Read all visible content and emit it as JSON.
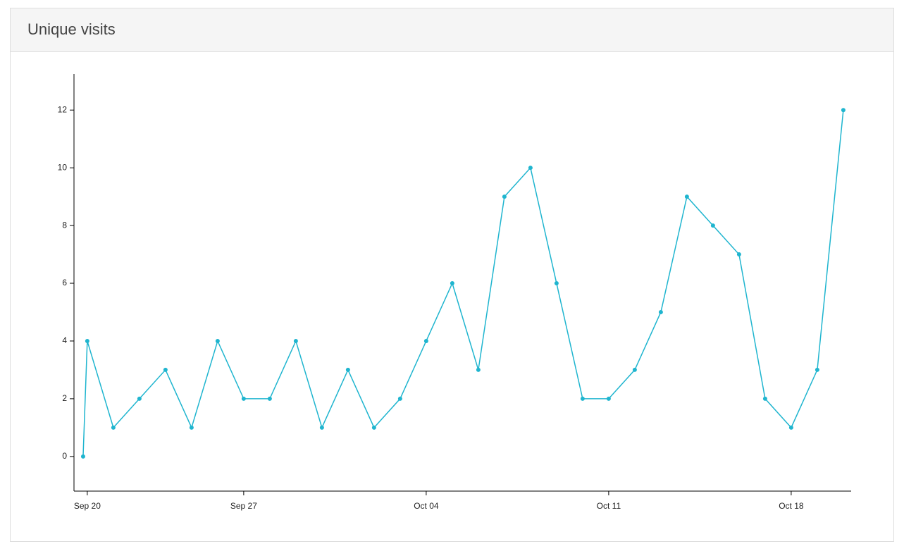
{
  "panel": {
    "title": "Unique visits"
  },
  "chart_data": {
    "type": "line",
    "x": [
      -0.16,
      0,
      1,
      2,
      3,
      4,
      5,
      6,
      7,
      8,
      9,
      10,
      11,
      12,
      13,
      14,
      15,
      16,
      17,
      18,
      19,
      20,
      21,
      22,
      23,
      24,
      25,
      26,
      27,
      28,
      29
    ],
    "series": [
      {
        "color": "#1fb5cf",
        "values": [
          0,
          4,
          1,
          2,
          3,
          1,
          4,
          2,
          2,
          4,
          1,
          3,
          1,
          2,
          4,
          6,
          3,
          9,
          10,
          6,
          2,
          2,
          3,
          5,
          9,
          8,
          7,
          2,
          1,
          3,
          12
        ]
      }
    ],
    "xlim": [
      -0.51,
      29.3
    ],
    "xticks": [
      {
        "value": 0,
        "label": "Sep 20"
      },
      {
        "value": 6,
        "label": "Sep 27"
      },
      {
        "value": 13,
        "label": "Oct 04"
      },
      {
        "value": 20,
        "label": "Oct 11"
      },
      {
        "value": 27,
        "label": "Oct 18"
      }
    ],
    "ylim": [
      -1.2,
      13.25
    ],
    "yticks": [
      0,
      2,
      4,
      6,
      8,
      10,
      12
    ],
    "grid": false
  }
}
